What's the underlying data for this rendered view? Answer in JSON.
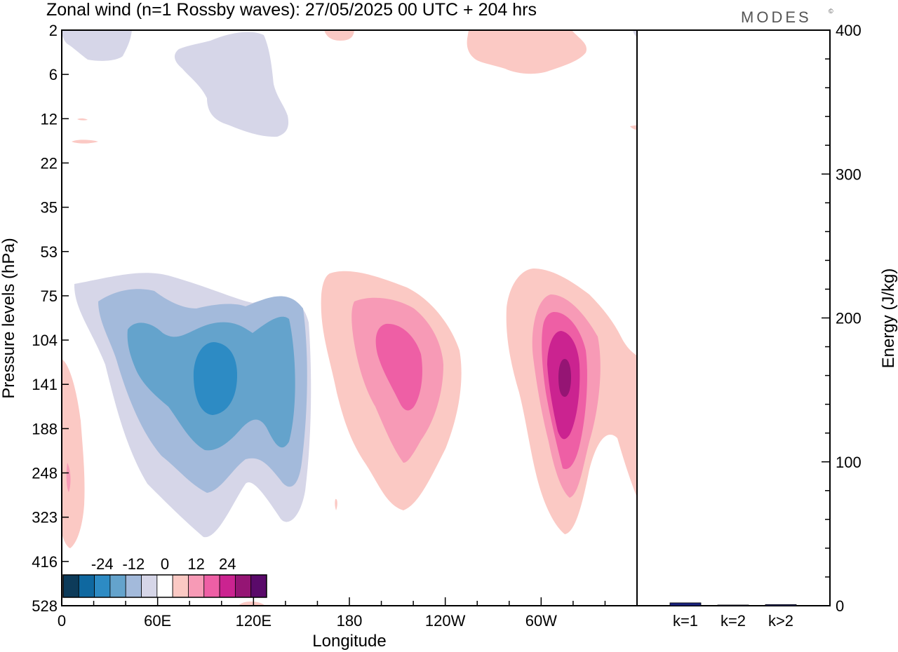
{
  "chart_data": [
    {
      "type": "heatmap",
      "title": "Zonal wind (n=1 Rossby waves):  27/05/2025  00 UTC  + 204 hrs",
      "xlabel": "Longitude",
      "ylabel": "Pressure levels (hPa)",
      "x_ticks": [
        "0",
        "60E",
        "120E",
        "180",
        "120W",
        "60W"
      ],
      "x_tick_degrees": [
        0,
        60,
        120,
        180,
        240,
        300
      ],
      "xlim": [
        0,
        360
      ],
      "y_levels": [
        "2",
        "6",
        "12",
        "22",
        "35",
        "53",
        "75",
        "104",
        "141",
        "188",
        "248",
        "323",
        "416",
        "528"
      ],
      "y_scale": "pressure levels (evenly spaced, top = 2 hPa)",
      "colorbar": {
        "tick_labels": [
          "-24",
          "-12",
          "0",
          "12",
          "24"
        ],
        "tick_values": [
          -24,
          -12,
          0,
          12,
          24
        ],
        "colors": [
          "#0d3b5a",
          "#0f68a0",
          "#2d8bc4",
          "#64a3cc",
          "#a3badb",
          "#d6d6e8",
          "#ffffff",
          "#fbc9c4",
          "#f79ab6",
          "#ee5fa5",
          "#cb2390",
          "#951574",
          "#5a0a6a"
        ]
      },
      "features": [
        {
          "sign": "negative",
          "max_magnitude": 20,
          "center_lon": 93,
          "center_hPa": 141
        },
        {
          "sign": "positive",
          "max_magnitude": 16,
          "center_lon": 207,
          "center_hPa": 118
        },
        {
          "sign": "positive",
          "max_magnitude": 26,
          "center_lon": 315,
          "center_hPa": 141
        },
        {
          "sign": "negative",
          "max_magnitude": 4,
          "center_lon": 130,
          "center_hPa": 8
        },
        {
          "sign": "positive",
          "max_magnitude": 4,
          "center_lon": 300,
          "center_hPa": 4
        }
      ]
    },
    {
      "type": "bar",
      "ylabel": "Energy (J/kg)",
      "categories": [
        "k=1",
        "k=2",
        "k>2"
      ],
      "values": [
        2,
        0.5,
        0.8
      ],
      "ylim": [
        0,
        400
      ],
      "y_ticks": [
        0,
        100,
        200,
        300,
        400
      ],
      "bar_colors": [
        "#1a237e",
        "#1a237e",
        "#1a237e"
      ]
    }
  ],
  "logo_text": "MODES"
}
